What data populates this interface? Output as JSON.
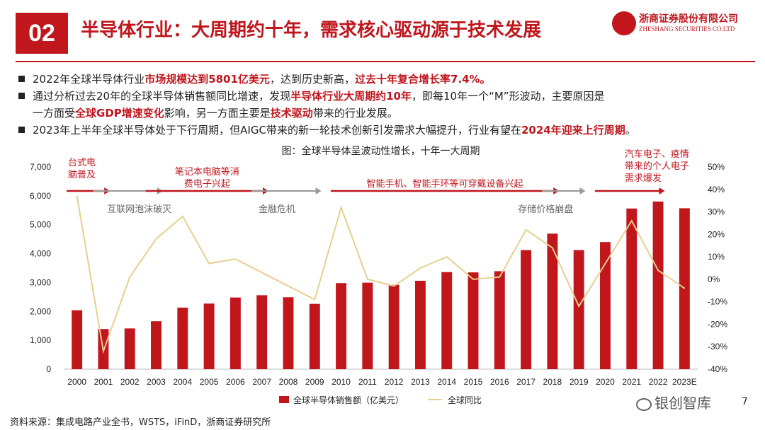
{
  "header": {
    "badge": "02",
    "title": "半导体行业：大周期约十年，需求核心驱动源于技术发展",
    "logo_cn": "浙商证券股份有限公司",
    "logo_en": "ZHESHANG SECURITIES CO.LTD"
  },
  "bullets": {
    "b1_a": "2022年全球半导体行业",
    "b1_h1": "市场规模达到5801亿美元",
    "b1_b": "，达到历史新高，",
    "b1_h2": "过去十年复合增长率7.4%。",
    "b2_a": "通过分析过去20年的全球半导体销售额同比增速，发现",
    "b2_h1": "半导体行业大周期约10年",
    "b2_b": "，即每10年一个“M”形波动，主要原因是",
    "b2c_a": "一方面受",
    "b2c_h1": "全球GDP增速变化",
    "b2c_b": "影响，另一方面主要是",
    "b2c_h2": "技术驱动",
    "b2c_c": "带来的行业发展。",
    "b3_a": "2023年上半年全球半导体处于下行周期，但AIGC带来的新一轮技术创新引发需求大幅提升，行业有望在",
    "b3_h1": "2024年迎来上行周期",
    "b3_b": "。"
  },
  "chart_data": {
    "type": "bar+line",
    "title": "图：全球半导体呈波动性增长，十年一大周期",
    "categories": [
      "2000",
      "2001",
      "2002",
      "2003",
      "2004",
      "2005",
      "2006",
      "2007",
      "2008",
      "2009",
      "2010",
      "2011",
      "2012",
      "2013",
      "2014",
      "2015",
      "2016",
      "2017",
      "2018",
      "2019",
      "2020",
      "2021",
      "2022",
      "2023E"
    ],
    "series": [
      {
        "name": "全球半导体销售额（亿美元）",
        "type": "bar",
        "axis": "left",
        "color": "#c0161c",
        "values": [
          2040,
          1390,
          1410,
          1660,
          2130,
          2270,
          2480,
          2560,
          2490,
          2260,
          2980,
          2995,
          2920,
          3060,
          3360,
          3350,
          3390,
          4120,
          4690,
          4120,
          4400,
          5560,
          5801,
          5570
        ]
      },
      {
        "name": "全球同比",
        "type": "line",
        "axis": "right",
        "color": "#e6cf8f",
        "values": [
          37,
          -32,
          1,
          18,
          28,
          7,
          9,
          3,
          -3,
          -9,
          32,
          0,
          -3,
          5,
          10,
          0,
          1,
          22,
          14,
          -12,
          7,
          26,
          4,
          -4
        ]
      }
    ],
    "y_left": {
      "min": 0,
      "max": 7000,
      "ticks": [
        "0",
        "1,000",
        "2,000",
        "3,000",
        "4,000",
        "5,000",
        "6,000",
        "7,000"
      ]
    },
    "y_right": {
      "min": -40,
      "max": 50,
      "ticks": [
        "-40%",
        "-30%",
        "-20%",
        "-10%",
        "0%",
        "10%",
        "20%",
        "30%",
        "40%",
        "50%"
      ]
    },
    "annotations": [
      {
        "text": "台式电\n脑普及",
        "color": "#c0161c",
        "arrow": "red",
        "from": "2000",
        "to": "2001"
      },
      {
        "text": "互联网泡沫破灭",
        "color": "#666666",
        "arrow": "gray",
        "from": "2001",
        "to": "2003"
      },
      {
        "text": "笔记本电脑等消\n费电子兴起",
        "color": "#c0161c",
        "arrow": "red",
        "from": "2003",
        "to": "2007"
      },
      {
        "text": "金融危机",
        "color": "#666666",
        "arrow": "gray",
        "from": "2007",
        "to": "2009"
      },
      {
        "text": "智能手机、智能手环等可穿戴设备兴起",
        "color": "#c0161c",
        "arrow": "red",
        "from": "2010",
        "to": "2018"
      },
      {
        "text": "存储价格崩盘",
        "color": "#666666",
        "arrow": "gray",
        "from": "2018",
        "to": "2019"
      },
      {
        "text": "汽车电子、疫情\n带来的个人电子\n需求爆发",
        "color": "#c0161c",
        "arrow": "red",
        "from": "2020",
        "to": "2022"
      }
    ],
    "legend": "bottom"
  },
  "footer": {
    "source": "资料来源：集成电路产业全书，WSTS，iFinD，浙商证券研究所",
    "watermark": "银创智库",
    "page": "7"
  }
}
